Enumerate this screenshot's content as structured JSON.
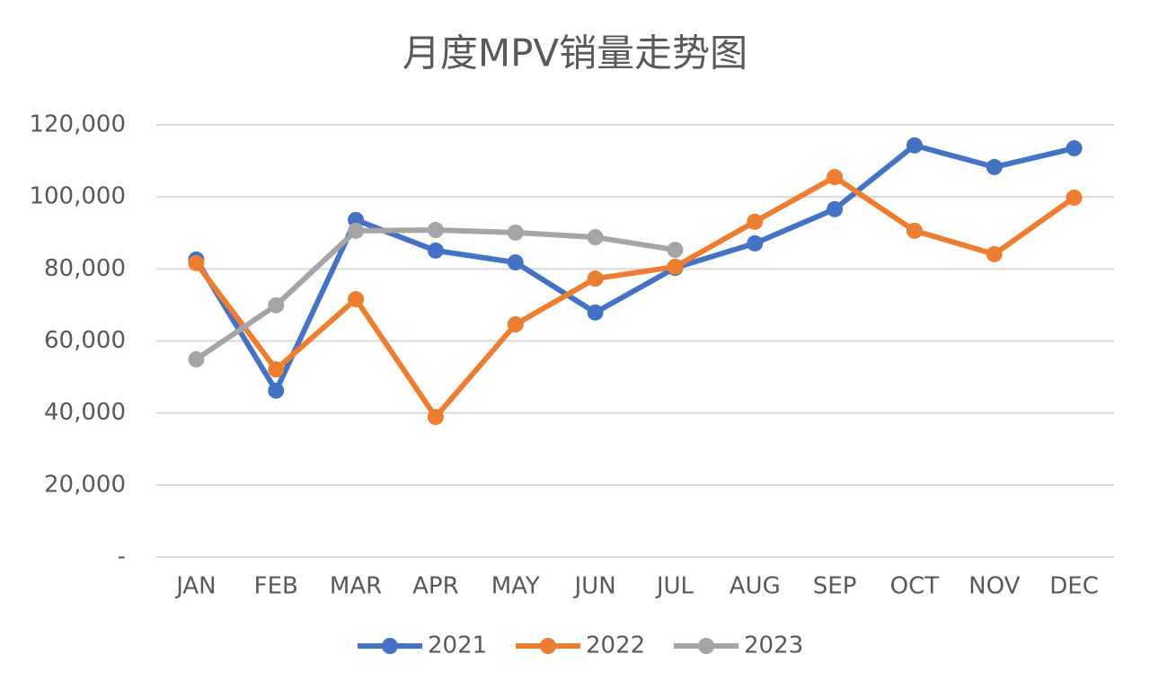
{
  "chart_data": {
    "type": "line",
    "title": "月度MPV销量走势图",
    "categories": [
      "JAN",
      "FEB",
      "MAR",
      "APR",
      "MAY",
      "JUN",
      "JUL",
      "AUG",
      "SEP",
      "OCT",
      "NOV",
      "DEC"
    ],
    "series": [
      {
        "name": "2021",
        "color": "#4472c4",
        "values": [
          82600,
          46200,
          93600,
          85100,
          81800,
          67900,
          80300,
          87100,
          96600,
          114300,
          108300,
          113500
        ]
      },
      {
        "name": "2022",
        "color": "#ed7d31",
        "values": [
          81600,
          52100,
          71600,
          38900,
          64600,
          77300,
          80600,
          93100,
          105500,
          90600,
          84100,
          99800
        ]
      },
      {
        "name": "2023",
        "color": "#a5a5a5",
        "values": [
          54900,
          69900,
          90600,
          90800,
          90100,
          88800,
          85300,
          null,
          null,
          null,
          null,
          null
        ]
      }
    ],
    "ylim": [
      0,
      120000
    ],
    "yticks": [
      {
        "value": 0,
        "label": "-"
      },
      {
        "value": 20000,
        "label": "20,000"
      },
      {
        "value": 40000,
        "label": "40,000"
      },
      {
        "value": 60000,
        "label": "60,000"
      },
      {
        "value": 80000,
        "label": "80,000"
      },
      {
        "value": 100000,
        "label": "100,000"
      },
      {
        "value": 120000,
        "label": "120,000"
      }
    ],
    "grid": true,
    "legend": "bottom"
  }
}
